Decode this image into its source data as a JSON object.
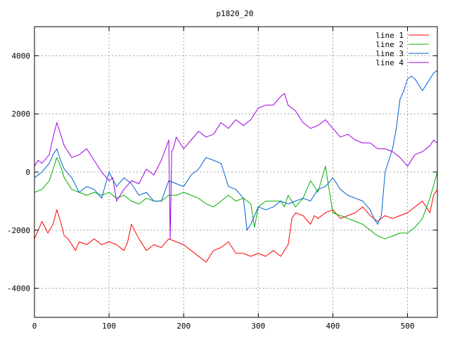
{
  "chart_data": {
    "type": "line",
    "title": "p1820_20",
    "xlabel": "",
    "ylabel": "",
    "xlim": [
      0,
      540
    ],
    "ylim": [
      -5000,
      5000
    ],
    "xticks": [
      0,
      100,
      200,
      300,
      400,
      500
    ],
    "yticks": [
      -4000,
      -2000,
      0,
      2000,
      4000
    ],
    "grid": true,
    "legend_position": "top-right",
    "series": [
      {
        "name": "line 1",
        "color": "#ff0000",
        "x": [
          0,
          5,
          10,
          18,
          25,
          30,
          35,
          40,
          45,
          50,
          55,
          60,
          70,
          80,
          90,
          100,
          110,
          120,
          125,
          130,
          140,
          150,
          160,
          170,
          180,
          190,
          200,
          210,
          220,
          230,
          240,
          250,
          260,
          270,
          280,
          290,
          300,
          310,
          320,
          330,
          335,
          340,
          345,
          350,
          360,
          370,
          375,
          380,
          390,
          400,
          410,
          420,
          430,
          440,
          450,
          460,
          470,
          480,
          490,
          500,
          510,
          520,
          530,
          535,
          540
        ],
        "values": [
          -2300,
          -2000,
          -1700,
          -2100,
          -1800,
          -1300,
          -1700,
          -2200,
          -2300,
          -2500,
          -2700,
          -2400,
          -2500,
          -2300,
          -2500,
          -2400,
          -2500,
          -2700,
          -2400,
          -1800,
          -2300,
          -2700,
          -2500,
          -2600,
          -2300,
          -2400,
          -2500,
          -2700,
          -2900,
          -3100,
          -2700,
          -2600,
          -2400,
          -2800,
          -2800,
          -2900,
          -2800,
          -2900,
          -2700,
          -2900,
          -2700,
          -2500,
          -1600,
          -1400,
          -1500,
          -1800,
          -1500,
          -1600,
          -1400,
          -1300,
          -1600,
          -1500,
          -1400,
          -1200,
          -1500,
          -1700,
          -1500,
          -1600,
          -1500,
          -1400,
          -1200,
          -1000,
          -1400,
          -800,
          -600
        ]
      },
      {
        "name": "line 2",
        "color": "#00b000",
        "x": [
          0,
          10,
          20,
          25,
          30,
          35,
          40,
          50,
          60,
          70,
          80,
          90,
          100,
          110,
          120,
          130,
          140,
          150,
          160,
          170,
          180,
          190,
          200,
          210,
          220,
          230,
          240,
          250,
          260,
          270,
          280,
          290,
          295,
          300,
          310,
          320,
          330,
          335,
          340,
          350,
          360,
          370,
          380,
          390,
          400,
          410,
          420,
          430,
          440,
          450,
          460,
          470,
          480,
          490,
          500,
          510,
          520,
          530,
          540
        ],
        "values": [
          -700,
          -600,
          -300,
          100,
          500,
          200,
          -200,
          -600,
          -700,
          -800,
          -700,
          -800,
          -700,
          -900,
          -800,
          -1000,
          -1100,
          -900,
          -1000,
          -1000,
          -800,
          -800,
          -700,
          -800,
          -900,
          -1100,
          -1200,
          -1000,
          -800,
          -1000,
          -900,
          -1100,
          -1900,
          -1200,
          -1000,
          -1000,
          -1000,
          -1200,
          -800,
          -1200,
          -900,
          -300,
          -700,
          200,
          -1400,
          -1500,
          -1600,
          -1700,
          -1800,
          -2000,
          -2200,
          -2300,
          -2200,
          -2100,
          -2100,
          -1900,
          -1600,
          -900,
          0
        ]
      },
      {
        "name": "line 3",
        "color": "#0060d0",
        "x": [
          0,
          10,
          20,
          25,
          30,
          35,
          40,
          50,
          60,
          70,
          80,
          90,
          100,
          110,
          120,
          130,
          140,
          150,
          160,
          170,
          180,
          190,
          200,
          210,
          220,
          230,
          240,
          250,
          260,
          270,
          280,
          285,
          290,
          300,
          310,
          320,
          330,
          340,
          350,
          360,
          370,
          380,
          390,
          400,
          410,
          420,
          430,
          440,
          450,
          455,
          460,
          465,
          470,
          475,
          480,
          485,
          490,
          495,
          500,
          505,
          510,
          515,
          520,
          525,
          530,
          535,
          540
        ],
        "values": [
          -200,
          0,
          300,
          600,
          800,
          400,
          100,
          -200,
          -700,
          -500,
          -600,
          -900,
          0,
          -500,
          -200,
          -400,
          -800,
          -700,
          -1000,
          -1000,
          -300,
          -400,
          -500,
          -100,
          100,
          500,
          400,
          300,
          -500,
          -600,
          -900,
          -2000,
          -1800,
          -1200,
          -1300,
          -1200,
          -1000,
          -1100,
          -1000,
          -900,
          -1000,
          -600,
          -500,
          -200,
          -600,
          -800,
          -900,
          -1000,
          -1300,
          -1600,
          -1800,
          -1500,
          0,
          400,
          800,
          1500,
          2500,
          2800,
          3200,
          3300,
          3200,
          3000,
          2800,
          3000,
          3200,
          3400,
          3500
        ]
      },
      {
        "name": "line 4",
        "color": "#a000e0",
        "x": [
          0,
          5,
          10,
          20,
          25,
          30,
          35,
          40,
          50,
          60,
          70,
          80,
          90,
          100,
          105,
          110,
          120,
          130,
          140,
          150,
          160,
          170,
          180,
          182,
          184,
          186,
          190,
          200,
          210,
          220,
          230,
          240,
          250,
          260,
          270,
          280,
          290,
          300,
          310,
          320,
          330,
          335,
          340,
          350,
          360,
          370,
          380,
          390,
          400,
          410,
          420,
          430,
          440,
          450,
          460,
          470,
          480,
          490,
          500,
          510,
          520,
          530,
          535,
          540
        ],
        "values": [
          200,
          400,
          300,
          600,
          1200,
          1700,
          1300,
          900,
          500,
          600,
          800,
          400,
          0,
          -300,
          -200,
          -1000,
          -600,
          -300,
          -400,
          100,
          -100,
          400,
          1100,
          -2300,
          700,
          800,
          1200,
          800,
          1100,
          1400,
          1200,
          1300,
          1700,
          1500,
          1800,
          1600,
          1800,
          2200,
          2300,
          2300,
          2600,
          2700,
          2300,
          2100,
          1700,
          1500,
          1600,
          1800,
          1500,
          1200,
          1300,
          1100,
          1000,
          1000,
          800,
          800,
          700,
          500,
          200,
          600,
          700,
          900,
          1100,
          1000
        ]
      }
    ]
  }
}
